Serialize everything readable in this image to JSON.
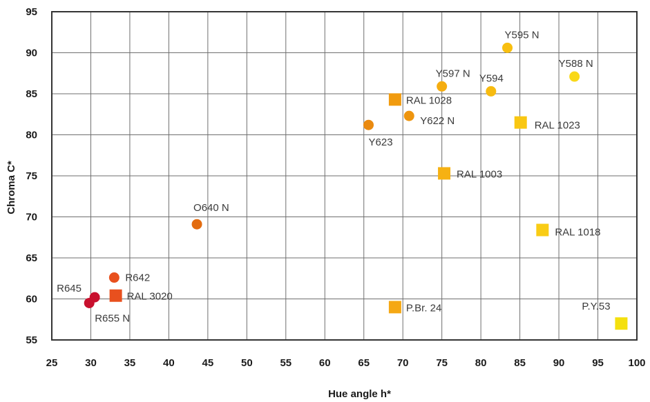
{
  "chart_data": {
    "type": "scatter",
    "title": "",
    "xlabel": "Hue angle h*",
    "ylabel": "Chroma C*",
    "xlim": [
      25,
      100
    ],
    "ylim": [
      55,
      95
    ],
    "xticks": [
      25,
      30,
      35,
      40,
      45,
      50,
      55,
      60,
      65,
      70,
      75,
      80,
      85,
      90,
      95,
      100
    ],
    "yticks": [
      55,
      60,
      65,
      70,
      75,
      80,
      85,
      90,
      95
    ],
    "grid": true,
    "points": [
      {
        "label": "R645",
        "x": 30.5,
        "y": 60.2,
        "marker": "circle",
        "color": "#c8102e"
      },
      {
        "label": "R655 N",
        "x": 29.8,
        "y": 59.5,
        "marker": "circle",
        "color": "#c8102e"
      },
      {
        "label": "R642",
        "x": 33.0,
        "y": 62.6,
        "marker": "circle",
        "color": "#e8501e"
      },
      {
        "label": "RAL 3020",
        "x": 33.2,
        "y": 60.4,
        "marker": "square",
        "color": "#e8501e"
      },
      {
        "label": "O640 N",
        "x": 43.6,
        "y": 69.1,
        "marker": "circle",
        "color": "#e36c10"
      },
      {
        "label": "Y623",
        "x": 65.6,
        "y": 81.2,
        "marker": "circle",
        "color": "#ea8a10"
      },
      {
        "label": "RAL 1028",
        "x": 69.0,
        "y": 84.3,
        "marker": "square",
        "color": "#f19b0f"
      },
      {
        "label": "Y622 N",
        "x": 70.8,
        "y": 82.3,
        "marker": "circle",
        "color": "#ee950f"
      },
      {
        "label": "P.Br. 24",
        "x": 69.0,
        "y": 59.0,
        "marker": "square",
        "color": "#f5a814"
      },
      {
        "label": "Y597 N",
        "x": 75.0,
        "y": 85.9,
        "marker": "circle",
        "color": "#f5ad10"
      },
      {
        "label": "RAL 1003",
        "x": 75.3,
        "y": 75.3,
        "marker": "square",
        "color": "#f6b112"
      },
      {
        "label": "Y594",
        "x": 81.3,
        "y": 85.3,
        "marker": "circle",
        "color": "#f7bb10"
      },
      {
        "label": "Y595 N",
        "x": 83.4,
        "y": 90.6,
        "marker": "circle",
        "color": "#f8bf10"
      },
      {
        "label": "RAL 1023",
        "x": 85.1,
        "y": 81.5,
        "marker": "square",
        "color": "#f9c712"
      },
      {
        "label": "RAL 1018",
        "x": 87.9,
        "y": 68.4,
        "marker": "square",
        "color": "#f9cc15"
      },
      {
        "label": "Y588 N",
        "x": 92.0,
        "y": 87.1,
        "marker": "circle",
        "color": "#f9d818"
      },
      {
        "label": "P.Y.53",
        "x": 98.0,
        "y": 57.0,
        "marker": "square",
        "color": "#f4e00e"
      }
    ]
  }
}
